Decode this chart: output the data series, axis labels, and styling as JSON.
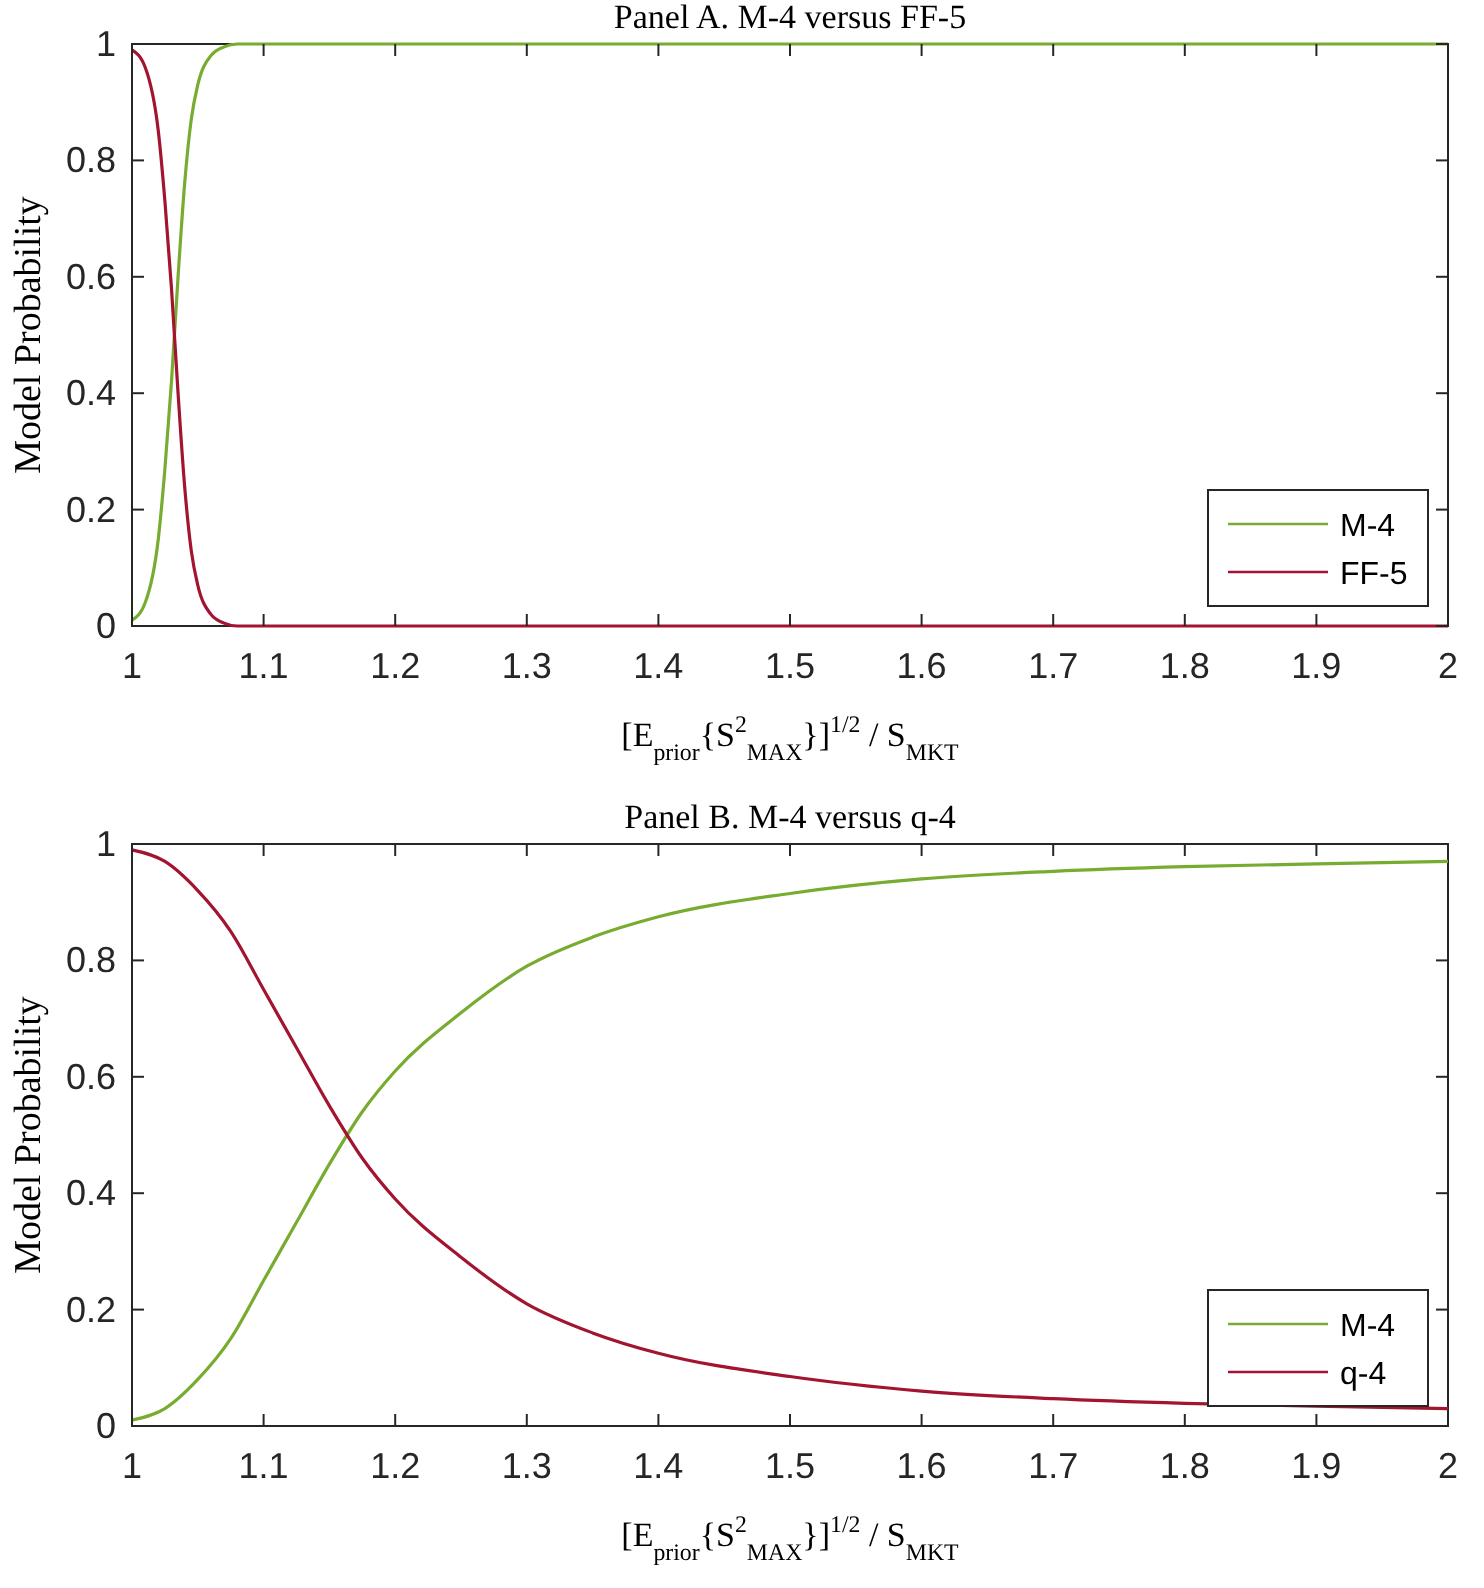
{
  "chart_data": [
    {
      "type": "line",
      "title": "Panel A. M-4 versus FF-5",
      "xlabel": "[E$_{prior}${S$^{2}$$_{MAX}$}]$^{1/2}$ / S$_{MKT}$",
      "ylabel": "Model Probability",
      "xlim": [
        1,
        2
      ],
      "xticks": [
        1,
        1.1,
        1.2,
        1.3,
        1.4,
        1.5,
        1.6,
        1.7,
        1.8,
        1.9,
        2
      ],
      "ylim": [
        0,
        1
      ],
      "yticks": [
        0,
        0.2,
        0.4,
        0.6,
        0.8,
        1
      ],
      "legend": "bottom right",
      "grid": false,
      "x": [
        1,
        1.01,
        1.02,
        1.025,
        1.03,
        1.035,
        1.04,
        1.045,
        1.05,
        1.06,
        1.07,
        1.08,
        1.1,
        1.2,
        1.4,
        1.6,
        1.8,
        2
      ],
      "series": [
        {
          "name": "M-4",
          "color": "#77ac30",
          "values": [
            0.01,
            0.04,
            0.15,
            0.27,
            0.42,
            0.6,
            0.76,
            0.87,
            0.93,
            0.98,
            0.995,
            1,
            1,
            1,
            1,
            1,
            1,
            1
          ]
        },
        {
          "name": "FF-5",
          "color": "#a2142f",
          "values": [
            0.99,
            0.96,
            0.85,
            0.73,
            0.58,
            0.4,
            0.24,
            0.13,
            0.07,
            0.02,
            0.005,
            0,
            0,
            0,
            0,
            0,
            0,
            0
          ]
        }
      ]
    },
    {
      "type": "line",
      "title": "Panel B. M-4 versus q-4",
      "xlabel": "[E$_{prior}${S$^{2}$$_{MAX}$}]$^{1/2}$ / S$_{MKT}$",
      "ylabel": "Model Probability",
      "xlim": [
        1,
        2
      ],
      "xticks": [
        1,
        1.1,
        1.2,
        1.3,
        1.4,
        1.5,
        1.6,
        1.7,
        1.8,
        1.9,
        2
      ],
      "ylim": [
        0,
        1
      ],
      "yticks": [
        0,
        0.2,
        0.4,
        0.6,
        0.8,
        1
      ],
      "legend": "bottom right",
      "grid": false,
      "x": [
        1,
        1.025,
        1.05,
        1.075,
        1.1,
        1.125,
        1.15,
        1.175,
        1.2,
        1.25,
        1.3,
        1.35,
        1.4,
        1.5,
        1.6,
        1.7,
        1.8,
        1.9,
        2
      ],
      "series": [
        {
          "name": "M-4",
          "color": "#77ac30",
          "values": [
            0.01,
            0.03,
            0.08,
            0.15,
            0.25,
            0.35,
            0.45,
            0.54,
            0.61,
            0.71,
            0.79,
            0.84,
            0.875,
            0.915,
            0.94,
            0.953,
            0.961,
            0.966,
            0.97
          ]
        },
        {
          "name": "q-4",
          "color": "#a2142f",
          "values": [
            0.99,
            0.97,
            0.92,
            0.85,
            0.75,
            0.65,
            0.55,
            0.46,
            0.39,
            0.29,
            0.21,
            0.16,
            0.125,
            0.085,
            0.06,
            0.047,
            0.039,
            0.034,
            0.03
          ]
        }
      ]
    }
  ]
}
